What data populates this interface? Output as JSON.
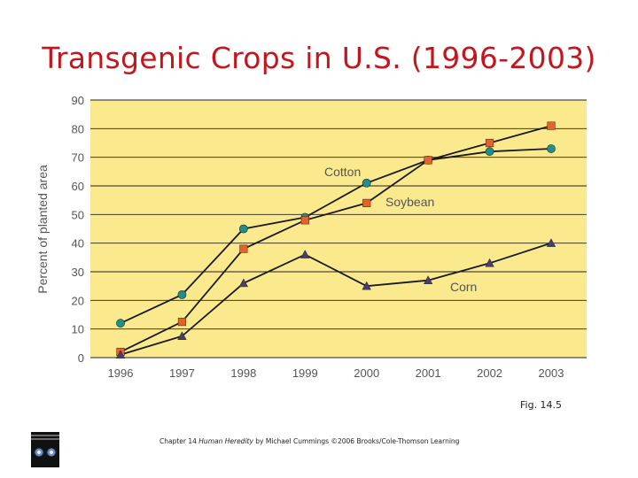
{
  "slide": {
    "title": "Transgenic Crops in U.S. (1996-2003)",
    "figure_label": "Fig. 14.5",
    "credit_pre": "Chapter 14 ",
    "credit_book": "Human Heredity",
    "credit_post": " by Michael Cummings ©2006 Brooks/Cole-Thomson Learning",
    "cover_icon": "book-cover-icon"
  },
  "colors": {
    "title": "#c4161c",
    "plot_background": "#fbe98e",
    "gridline": "#222222",
    "line": "#1a1a1a",
    "axis_text": "#555555",
    "cotton_marker": "#1f8f8c",
    "soybean_marker": "#e2642a",
    "corn_marker": "#4a3d6e"
  },
  "chart_data": {
    "type": "line",
    "title": "",
    "xlabel": "",
    "ylabel": "Percent of planted area",
    "categories": [
      "1996",
      "1997",
      "1998",
      "1999",
      "2000",
      "2001",
      "2002",
      "2003"
    ],
    "ylim": [
      0,
      90
    ],
    "yticks": [
      0,
      10,
      20,
      30,
      40,
      50,
      60,
      70,
      80,
      90
    ],
    "grid": "horizontal",
    "legend": "inline labels",
    "series": [
      {
        "name": "Cotton",
        "marker": "circle",
        "values": [
          12,
          22,
          45,
          49,
          61,
          69,
          72,
          73
        ]
      },
      {
        "name": "Soybean",
        "marker": "square",
        "values": [
          2,
          12.5,
          38,
          48,
          54,
          69,
          75,
          81
        ]
      },
      {
        "name": "Corn",
        "marker": "triangle",
        "values": [
          1,
          7.5,
          26,
          36,
          25,
          27,
          33,
          40
        ]
      }
    ]
  }
}
